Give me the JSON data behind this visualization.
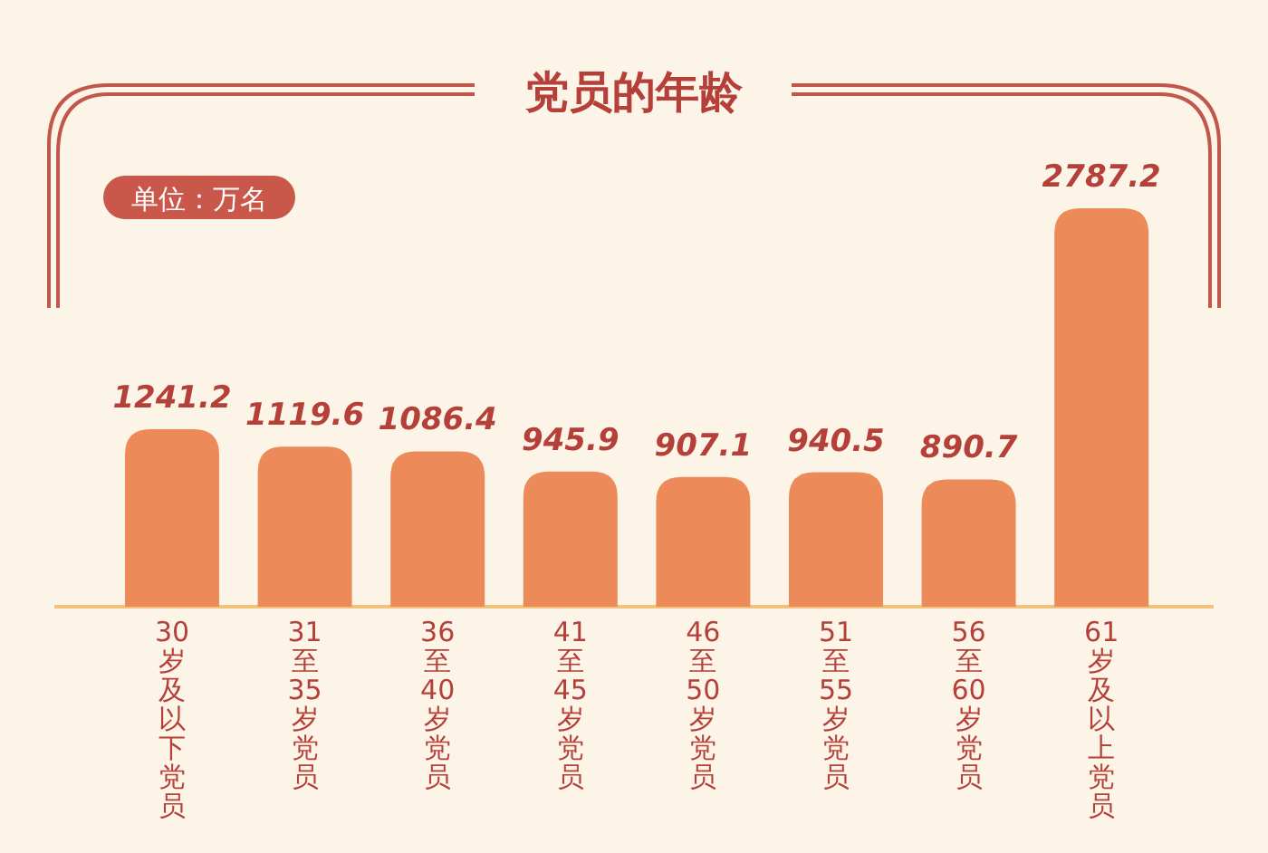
{
  "chart_data": {
    "type": "bar",
    "title": "党员的年龄",
    "annotations": [
      "单位：万名"
    ],
    "categories": [
      "30岁及以下党员",
      "31至35岁党员",
      "36至40岁党员",
      "41至45岁党员",
      "46至50岁党员",
      "51至55岁党员",
      "56至60岁党员",
      "61岁及以上党员"
    ],
    "values": [
      1241.2,
      1119.6,
      1086.4,
      945.9,
      907.1,
      940.5,
      890.7,
      2787.2
    ],
    "color": "#ec8a5a",
    "data_labels": true
  }
}
